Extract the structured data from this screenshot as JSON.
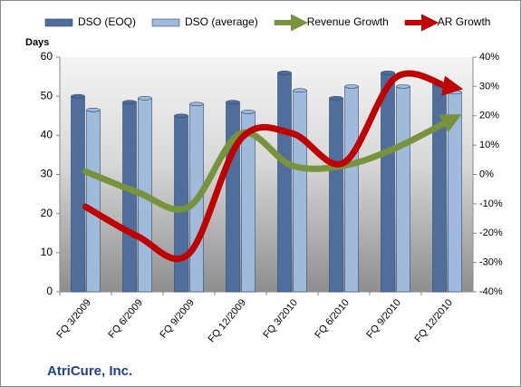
{
  "chart_data": {
    "type": "bar",
    "company": "AtriCure, Inc.",
    "y_axis_label": "Days",
    "categories": [
      "FQ 3/2009",
      "FQ 6/2009",
      "FQ 9/2009",
      "FQ 12/2009",
      "FQ 3/2010",
      "FQ 6/2010",
      "FQ 9/2010",
      "FQ 12/2010"
    ],
    "series": [
      {
        "name": "DSO (EOQ)",
        "type": "bar",
        "color": "#4f6e9c",
        "values": [
          50,
          48.5,
          45,
          48.5,
          56,
          49.5,
          56,
          53
        ]
      },
      {
        "name": "DSO (average)",
        "type": "bar",
        "color": "#9fbadb",
        "values": [
          46.5,
          49.5,
          48,
          46,
          51.5,
          52.5,
          52.5,
          51
        ]
      },
      {
        "name": "Revenue Growth",
        "type": "line",
        "axis": "y2",
        "color": "#77933c",
        "values": [
          1,
          -6,
          -11,
          14,
          3,
          3,
          9,
          18
        ]
      },
      {
        "name": "AR Growth",
        "type": "line",
        "axis": "y2",
        "color": "#c00000",
        "values": [
          -11,
          -21,
          -27,
          12,
          14,
          4,
          33,
          30
        ]
      }
    ],
    "ylim": [
      0,
      60
    ],
    "yticks": [
      0,
      10,
      20,
      30,
      40,
      50,
      60
    ],
    "y2lim": [
      -40,
      40
    ],
    "y2ticks": [
      {
        "value": -40,
        "label": "-40%"
      },
      {
        "value": -30,
        "label": "-30%"
      },
      {
        "value": -20,
        "label": "-20%"
      },
      {
        "value": -10,
        "label": "-10%"
      },
      {
        "value": 0,
        "label": "0%"
      },
      {
        "value": 10,
        "label": "10%"
      },
      {
        "value": 20,
        "label": "20%"
      },
      {
        "value": 30,
        "label": "30%"
      },
      {
        "value": 40,
        "label": "40%"
      }
    ],
    "legend": "top"
  }
}
